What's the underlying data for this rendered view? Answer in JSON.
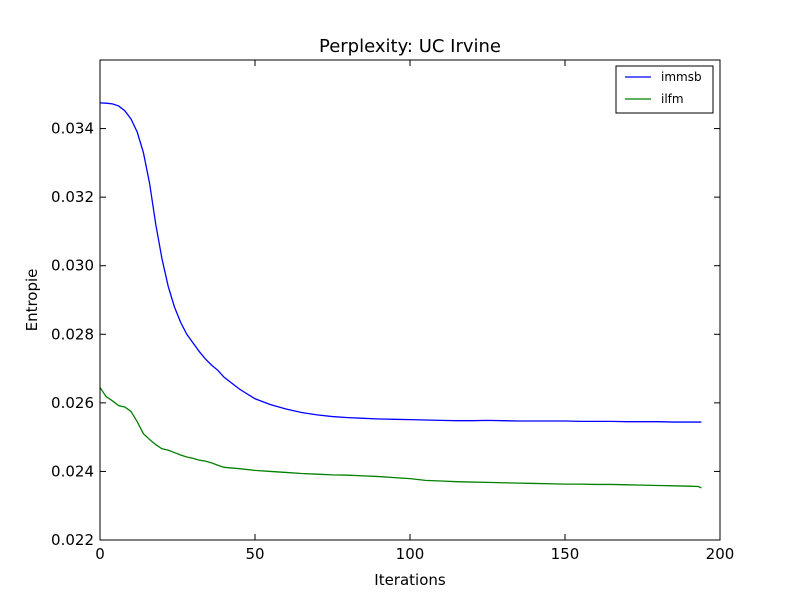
{
  "chart_data": {
    "type": "line",
    "title": "Perplexity: UC Irvine",
    "xlabel": "Iterations",
    "ylabel": "Entropie",
    "xlim": [
      0,
      200
    ],
    "ylim": [
      0.022,
      0.036
    ],
    "xticks": [
      "0",
      "50",
      "100",
      "150",
      "200"
    ],
    "yticks": [
      "0.022",
      "0.024",
      "0.026",
      "0.028",
      "0.030",
      "0.032",
      "0.034"
    ],
    "grid": false,
    "legend_position": "top-right",
    "series": [
      {
        "name": "immsb",
        "color": "#0000ff",
        "x": [
          0,
          2,
          4,
          6,
          8,
          10,
          12,
          14,
          16,
          18,
          20,
          22,
          24,
          26,
          28,
          30,
          32,
          34,
          36,
          38,
          40,
          45,
          50,
          55,
          60,
          65,
          70,
          75,
          80,
          85,
          90,
          95,
          100,
          105,
          110,
          115,
          120,
          125,
          130,
          135,
          140,
          145,
          150,
          155,
          160,
          165,
          170,
          175,
          180,
          185,
          190,
          194
        ],
        "y": [
          0.03475,
          0.03474,
          0.03472,
          0.03466,
          0.03452,
          0.03428,
          0.0339,
          0.0333,
          0.0324,
          0.0312,
          0.0302,
          0.0294,
          0.0288,
          0.02835,
          0.028,
          0.02775,
          0.0275,
          0.02728,
          0.0271,
          0.02695,
          0.02675,
          0.0264,
          0.02612,
          0.02595,
          0.02582,
          0.02572,
          0.02565,
          0.0256,
          0.02557,
          0.02555,
          0.02553,
          0.02552,
          0.02551,
          0.0255,
          0.02549,
          0.02548,
          0.02548,
          0.02549,
          0.02548,
          0.02547,
          0.02547,
          0.02547,
          0.02547,
          0.02546,
          0.02546,
          0.02546,
          0.02545,
          0.02545,
          0.02545,
          0.02544,
          0.02544,
          0.02544
        ]
      },
      {
        "name": "ilfm",
        "color": "#008000",
        "x": [
          0,
          2,
          4,
          6,
          8,
          10,
          12,
          14,
          16,
          18,
          20,
          22,
          24,
          26,
          28,
          30,
          32,
          34,
          36,
          38,
          40,
          45,
          50,
          55,
          60,
          65,
          70,
          75,
          80,
          85,
          90,
          95,
          100,
          105,
          110,
          115,
          120,
          125,
          130,
          135,
          140,
          145,
          150,
          155,
          160,
          165,
          170,
          175,
          180,
          185,
          190,
          193,
          194
        ],
        "y": [
          0.02645,
          0.02618,
          0.02606,
          0.02592,
          0.02588,
          0.02575,
          0.02545,
          0.0251,
          0.02493,
          0.02478,
          0.02466,
          0.02462,
          0.02455,
          0.02448,
          0.02442,
          0.02438,
          0.02433,
          0.0243,
          0.02425,
          0.02418,
          0.02412,
          0.02408,
          0.02403,
          0.024,
          0.02397,
          0.02394,
          0.02392,
          0.0239,
          0.02389,
          0.02387,
          0.02385,
          0.02382,
          0.02379,
          0.02374,
          0.02372,
          0.0237,
          0.02369,
          0.02368,
          0.02367,
          0.02366,
          0.02365,
          0.02364,
          0.02363,
          0.02363,
          0.02362,
          0.02362,
          0.02361,
          0.0236,
          0.02359,
          0.02358,
          0.02357,
          0.02356,
          0.02352
        ]
      }
    ]
  }
}
